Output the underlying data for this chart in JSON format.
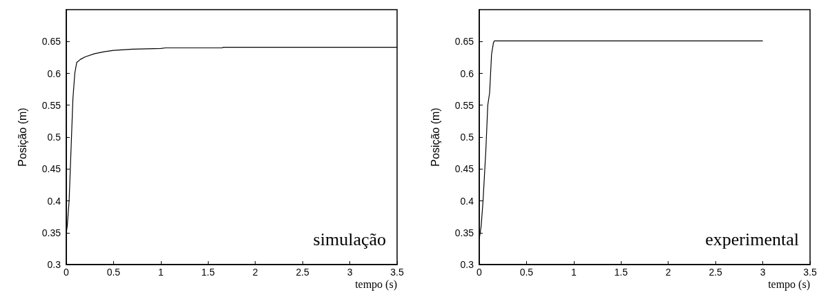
{
  "chart_data": [
    {
      "type": "line",
      "ylabel": "Posição (m)",
      "xlabel": "tempo (s)",
      "annotations": [
        "simulação"
      ],
      "xlim": [
        0,
        3.5
      ],
      "xticks": [
        0,
        0.5,
        1,
        1.5,
        2,
        2.5,
        3,
        3.5
      ],
      "ylim": [
        0.3,
        0.7
      ],
      "yticks": [
        0.3,
        0.35,
        0.4,
        0.45,
        0.5,
        0.55,
        0.6,
        0.65
      ],
      "grid": false,
      "marker": "none",
      "line_style": "solid",
      "series": [
        {
          "color": "#000000",
          "x": [
            0,
            0.01,
            0.03,
            0.05,
            0.07,
            0.09,
            0.11,
            0.15,
            0.2,
            0.3,
            0.4,
            0.5,
            0.7,
            1.0,
            1.05,
            1.65,
            1.66,
            3.5
          ],
          "values": [
            0.35,
            0.36,
            0.4,
            0.48,
            0.56,
            0.6,
            0.617,
            0.622,
            0.626,
            0.631,
            0.634,
            0.636,
            0.638,
            0.639,
            0.64,
            0.64,
            0.641,
            0.641
          ]
        }
      ]
    },
    {
      "type": "line",
      "ylabel": "Posição (m)",
      "xlabel": "tempo (s)",
      "annotations": [
        "experimental"
      ],
      "xlim": [
        0,
        3.5
      ],
      "xticks": [
        0,
        0.5,
        1,
        1.5,
        2,
        2.5,
        3,
        3.5
      ],
      "ylim": [
        0.3,
        0.7
      ],
      "yticks": [
        0.3,
        0.35,
        0.4,
        0.45,
        0.5,
        0.55,
        0.6,
        0.65
      ],
      "grid": false,
      "marker": "none",
      "line_style": "solid",
      "series": [
        {
          "color": "#000000",
          "x": [
            0,
            0.02,
            0.04,
            0.07,
            0.09,
            0.11,
            0.13,
            0.15,
            0.16,
            3.0
          ],
          "values": [
            0.34,
            0.36,
            0.4,
            0.48,
            0.55,
            0.57,
            0.63,
            0.648,
            0.651,
            0.651
          ]
        }
      ]
    }
  ]
}
